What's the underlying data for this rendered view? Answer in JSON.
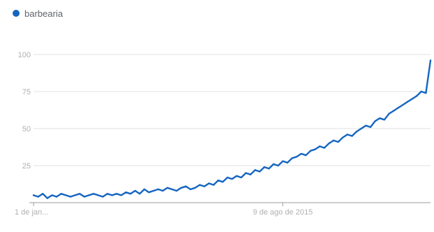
{
  "chart_data": {
    "type": "line",
    "legend": {
      "position": "top-left"
    },
    "grid": true,
    "y_ticks": [
      25,
      50,
      75,
      100
    ],
    "x_tick_labels": [
      "1 de jan...",
      "9 de ago de 2015"
    ],
    "x_tick_positions": [
      0,
      54
    ],
    "ylim": [
      0,
      100
    ],
    "series": [
      {
        "name": "barbearia",
        "color": "#1565C0",
        "x": [
          0,
          1,
          2,
          3,
          4,
          5,
          6,
          7,
          8,
          9,
          10,
          11,
          12,
          13,
          14,
          15,
          16,
          17,
          18,
          19,
          20,
          21,
          22,
          23,
          24,
          25,
          26,
          27,
          28,
          29,
          30,
          31,
          32,
          33,
          34,
          35,
          36,
          37,
          38,
          39,
          40,
          41,
          42,
          43,
          44,
          45,
          46,
          47,
          48,
          49,
          50,
          51,
          52,
          53,
          54,
          55,
          56,
          57,
          58,
          59,
          60,
          61,
          62,
          63,
          64,
          65,
          66,
          67,
          68,
          69,
          70,
          71,
          72,
          73,
          74,
          75,
          76,
          77,
          78,
          79,
          80,
          81,
          82,
          83,
          84,
          85,
          86
        ],
        "values": [
          5,
          4,
          6,
          3,
          5,
          4,
          6,
          5,
          4,
          5,
          6,
          4,
          5,
          6,
          5,
          4,
          6,
          5,
          6,
          5,
          7,
          6,
          8,
          6,
          9,
          7,
          8,
          9,
          8,
          10,
          9,
          8,
          10,
          11,
          9,
          10,
          12,
          11,
          13,
          12,
          15,
          14,
          17,
          16,
          18,
          17,
          20,
          19,
          22,
          21,
          24,
          23,
          26,
          25,
          28,
          27,
          30,
          31,
          33,
          32,
          35,
          36,
          38,
          37,
          40,
          42,
          41,
          44,
          46,
          45,
          48,
          50,
          52,
          51,
          55,
          57,
          56,
          60,
          62,
          64,
          66,
          68,
          70,
          72,
          75,
          74,
          96
        ]
      }
    ]
  }
}
